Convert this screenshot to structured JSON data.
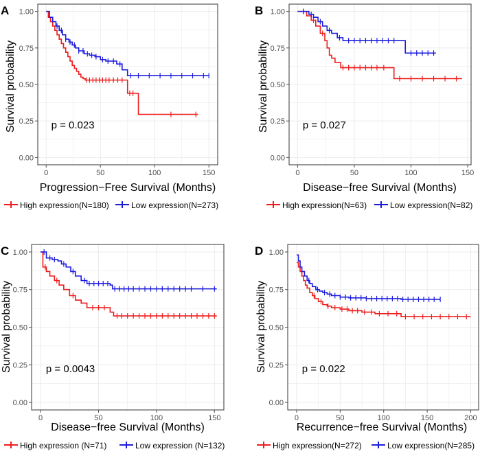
{
  "colors": {
    "high": "#ee1c1c",
    "low": "#1c1cdd",
    "grid": "#ebebeb",
    "axis": "#4d4d4d",
    "panel_border": "#333333"
  },
  "chart_data": [
    {
      "type": "line",
      "panel_label": "A",
      "ylabel": "Survival probability",
      "xlabel": "Progression−Free Survival (Months)",
      "p_value": "p = 0.023",
      "xlim": [
        0,
        155
      ],
      "ylim": [
        0,
        1
      ],
      "x_ticks": [
        0,
        50,
        100,
        150
      ],
      "y_ticks": [
        0.0,
        0.25,
        0.5,
        0.75,
        1.0
      ],
      "y_tick_labels": [
        "0.00",
        "0.25",
        "0.50",
        "0.75",
        "1.00"
      ],
      "series": [
        {
          "name": "High expression(N=180)",
          "key": "high",
          "x": [
            0,
            2,
            4,
            6,
            8,
            10,
            12,
            14,
            16,
            18,
            20,
            22,
            24,
            26,
            28,
            30,
            32,
            34,
            36,
            50,
            75,
            85,
            140
          ],
          "y": [
            1.0,
            0.96,
            0.93,
            0.9,
            0.87,
            0.84,
            0.81,
            0.78,
            0.75,
            0.72,
            0.69,
            0.66,
            0.63,
            0.61,
            0.59,
            0.57,
            0.55,
            0.54,
            0.53,
            0.53,
            0.44,
            0.295,
            0.295
          ],
          "censor_x": [
            37,
            40,
            43,
            46,
            49,
            52,
            55,
            58,
            62,
            66,
            70,
            77,
            80,
            115,
            138
          ]
        },
        {
          "name": "Low expression(N=273)",
          "key": "low",
          "x": [
            0,
            3,
            6,
            9,
            12,
            15,
            18,
            21,
            24,
            27,
            30,
            35,
            40,
            45,
            50,
            55,
            60,
            65,
            70,
            75,
            150
          ],
          "y": [
            1.0,
            0.96,
            0.93,
            0.9,
            0.87,
            0.84,
            0.81,
            0.79,
            0.77,
            0.75,
            0.73,
            0.71,
            0.7,
            0.69,
            0.67,
            0.66,
            0.66,
            0.64,
            0.6,
            0.56,
            0.56
          ],
          "censor_x": [
            10,
            14,
            18,
            22,
            26,
            30,
            34,
            38,
            42,
            46,
            52,
            57,
            62,
            68,
            78,
            85,
            95,
            105,
            115,
            125,
            135,
            145,
            150
          ]
        }
      ]
    },
    {
      "type": "line",
      "panel_label": "B",
      "ylabel": "Survival probability",
      "xlabel": "Disease−free Survival (Months)",
      "p_value": "p = 0.027",
      "xlim": [
        0,
        150
      ],
      "ylim": [
        0,
        1
      ],
      "x_ticks": [
        0,
        50,
        100,
        150
      ],
      "y_ticks": [
        0.0,
        0.25,
        0.5,
        0.75,
        1.0
      ],
      "y_tick_labels": [
        "0.00",
        "0.25",
        "0.50",
        "0.75",
        "1.00"
      ],
      "series": [
        {
          "name": "High expression(N=63)",
          "key": "high",
          "x": [
            0,
            8,
            12,
            16,
            20,
            24,
            26,
            28,
            30,
            33,
            38,
            85,
            145
          ],
          "y": [
            1.0,
            0.97,
            0.94,
            0.9,
            0.85,
            0.8,
            0.75,
            0.7,
            0.68,
            0.65,
            0.615,
            0.54,
            0.54
          ],
          "censor_x": [
            5,
            14,
            22,
            40,
            45,
            50,
            55,
            60,
            65,
            70,
            76,
            90,
            100,
            110,
            120,
            130,
            140
          ]
        },
        {
          "name": "Low expression(N=82)",
          "key": "low",
          "x": [
            0,
            10,
            14,
            18,
            22,
            26,
            30,
            35,
            40,
            95,
            122
          ],
          "y": [
            1.0,
            0.98,
            0.96,
            0.93,
            0.9,
            0.87,
            0.85,
            0.82,
            0.8,
            0.715,
            0.715
          ],
          "censor_x": [
            5,
            12,
            20,
            28,
            37,
            45,
            50,
            55,
            60,
            65,
            70,
            75,
            80,
            85,
            100,
            105,
            110,
            115,
            120
          ]
        }
      ]
    },
    {
      "type": "line",
      "panel_label": "C",
      "ylabel": "Survival probability",
      "xlabel": "Disease−free Survival (Months)",
      "p_value": "p = 0.0043",
      "xlim": [
        0,
        155
      ],
      "ylim": [
        0,
        1
      ],
      "x_ticks": [
        0,
        50,
        100,
        150
      ],
      "y_ticks": [
        0.0,
        0.25,
        0.5,
        0.75,
        1.0
      ],
      "y_tick_labels": [
        "0.00",
        "0.25",
        "0.50",
        "0.75",
        "1.00"
      ],
      "series": [
        {
          "name": "High expression (N=71)",
          "key": "high",
          "x": [
            0,
            2,
            5,
            8,
            12,
            16,
            20,
            25,
            30,
            35,
            40,
            60,
            63,
            152
          ],
          "y": [
            1.0,
            0.9,
            0.87,
            0.84,
            0.81,
            0.78,
            0.75,
            0.71,
            0.68,
            0.66,
            0.63,
            0.6,
            0.575,
            0.575
          ],
          "censor_x": [
            4,
            14,
            28,
            45,
            50,
            55,
            66,
            70,
            75,
            80,
            85,
            90,
            95,
            100,
            105,
            110,
            115,
            120,
            125,
            130,
            135,
            140,
            145,
            150
          ]
        },
        {
          "name": "Low expression (N=132)",
          "key": "low",
          "x": [
            0,
            5,
            10,
            15,
            18,
            22,
            26,
            30,
            35,
            40,
            60,
            62,
            152
          ],
          "y": [
            1.0,
            0.96,
            0.95,
            0.94,
            0.92,
            0.9,
            0.87,
            0.84,
            0.81,
            0.79,
            0.78,
            0.755,
            0.755
          ],
          "censor_x": [
            3,
            8,
            12,
            20,
            28,
            38,
            42,
            46,
            50,
            54,
            58,
            64,
            68,
            72,
            76,
            80,
            85,
            90,
            95,
            100,
            105,
            110,
            115,
            120,
            125,
            130,
            140,
            150
          ]
        }
      ]
    },
    {
      "type": "line",
      "panel_label": "D",
      "ylabel": "Survival probability",
      "xlabel": "Recurrence−free Survival (Months)",
      "p_value": "p = 0.022",
      "xlim": [
        0,
        205
      ],
      "ylim": [
        0,
        1
      ],
      "x_ticks": [
        0,
        50,
        100,
        150,
        200
      ],
      "y_ticks": [
        0.0,
        0.25,
        0.5,
        0.75,
        1.0
      ],
      "y_tick_labels": [
        "0.00",
        "0.25",
        "0.50",
        "0.75",
        "1.00"
      ],
      "series": [
        {
          "name": "High expression(N=272)",
          "key": "high",
          "x": [
            0,
            2,
            4,
            6,
            8,
            10,
            12,
            15,
            18,
            21,
            25,
            30,
            35,
            40,
            50,
            60,
            75,
            90,
            110,
            120,
            200
          ],
          "y": [
            0.93,
            0.9,
            0.87,
            0.84,
            0.81,
            0.78,
            0.76,
            0.73,
            0.71,
            0.69,
            0.67,
            0.65,
            0.64,
            0.63,
            0.62,
            0.61,
            0.6,
            0.59,
            0.59,
            0.57,
            0.57
          ],
          "censor_x": [
            20,
            28,
            36,
            44,
            52,
            58,
            64,
            70,
            78,
            86,
            95,
            105,
            115,
            125,
            135,
            145,
            155,
            165,
            175,
            185,
            195
          ]
        },
        {
          "name": "Low expression(N=285)",
          "key": "low",
          "x": [
            0,
            2,
            4,
            6,
            9,
            12,
            15,
            18,
            22,
            26,
            30,
            35,
            40,
            50,
            60,
            80,
            120,
            165
          ],
          "y": [
            0.98,
            0.94,
            0.9,
            0.87,
            0.84,
            0.81,
            0.79,
            0.77,
            0.75,
            0.74,
            0.73,
            0.72,
            0.71,
            0.7,
            0.695,
            0.69,
            0.685,
            0.685
          ],
          "censor_x": [
            14,
            24,
            32,
            38,
            44,
            50,
            56,
            62,
            68,
            74,
            80,
            86,
            92,
            98,
            104,
            110,
            116,
            122,
            128,
            134,
            140,
            146,
            152,
            158,
            165
          ]
        }
      ]
    }
  ]
}
